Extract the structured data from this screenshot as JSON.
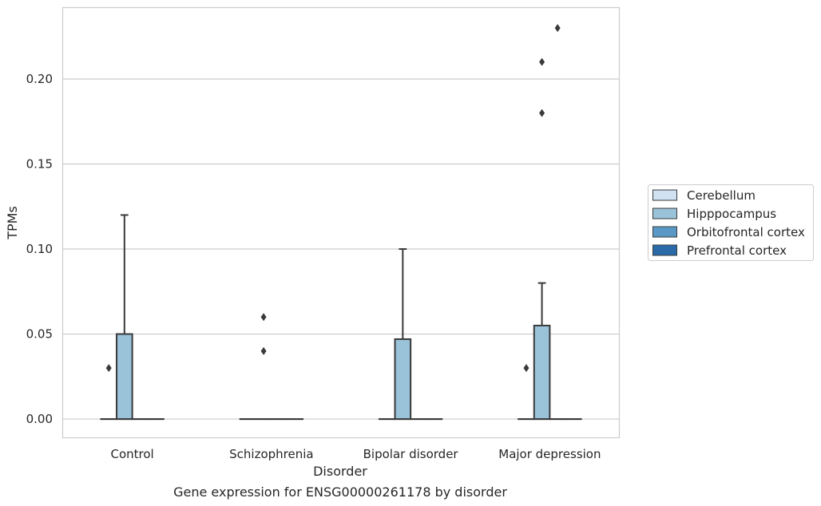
{
  "chart_data": {
    "type": "box",
    "title": "",
    "caption": "Gene expression for ENSG00000261178 by disorder",
    "xlabel": "Disorder",
    "ylabel": "TPMs",
    "ylim": [
      -0.011,
      0.242
    ],
    "yticks": [
      0.0,
      0.05,
      0.1,
      0.15,
      0.2
    ],
    "ytick_labels": [
      "0.00",
      "0.05",
      "0.10",
      "0.15",
      "0.20"
    ],
    "grid": "horizontal",
    "legend_position": "right",
    "categories": [
      "Control",
      "Schizophrenia",
      "Bipolar disorder",
      "Major depression"
    ],
    "series": [
      {
        "name": "Cerebellum",
        "color": "#d0e1f2",
        "boxes": [
          {
            "q1": 0,
            "median": 0,
            "q3": 0,
            "whisker_low": 0,
            "whisker_high": 0,
            "outliers": [
              0.03
            ]
          },
          {
            "q1": 0,
            "median": 0,
            "q3": 0,
            "whisker_low": 0,
            "whisker_high": 0,
            "outliers": []
          },
          {
            "q1": 0,
            "median": 0,
            "q3": 0,
            "whisker_low": 0,
            "whisker_high": 0,
            "outliers": []
          },
          {
            "q1": 0,
            "median": 0,
            "q3": 0,
            "whisker_low": 0,
            "whisker_high": 0,
            "outliers": [
              0.03
            ]
          }
        ]
      },
      {
        "name": "Hipppocampus",
        "color": "#9ac3da",
        "boxes": [
          {
            "q1": 0,
            "median": 0,
            "q3": 0.05,
            "whisker_low": 0,
            "whisker_high": 0.12,
            "outliers": []
          },
          {
            "q1": 0,
            "median": 0,
            "q3": 0,
            "whisker_low": 0,
            "whisker_high": 0,
            "outliers": [
              0.04,
              0.06
            ]
          },
          {
            "q1": 0,
            "median": 0,
            "q3": 0.047,
            "whisker_low": 0,
            "whisker_high": 0.1,
            "outliers": []
          },
          {
            "q1": 0,
            "median": 0,
            "q3": 0.055,
            "whisker_low": 0,
            "whisker_high": 0.08,
            "outliers": [
              0.18,
              0.21
            ]
          }
        ]
      },
      {
        "name": "Orbitofrontal cortex",
        "color": "#5a99c5",
        "boxes": [
          {
            "q1": 0,
            "median": 0,
            "q3": 0,
            "whisker_low": 0,
            "whisker_high": 0,
            "outliers": []
          },
          {
            "q1": 0,
            "median": 0,
            "q3": 0,
            "whisker_low": 0,
            "whisker_high": 0,
            "outliers": []
          },
          {
            "q1": 0,
            "median": 0,
            "q3": 0,
            "whisker_low": 0,
            "whisker_high": 0,
            "outliers": []
          },
          {
            "q1": 0,
            "median": 0,
            "q3": 0,
            "whisker_low": 0,
            "whisker_high": 0,
            "outliers": [
              0.23
            ]
          }
        ]
      },
      {
        "name": "Prefrontal cortex",
        "color": "#2a6aa8",
        "boxes": [
          {
            "q1": 0,
            "median": 0,
            "q3": 0,
            "whisker_low": 0,
            "whisker_high": 0,
            "outliers": []
          },
          {
            "q1": 0,
            "median": 0,
            "q3": 0,
            "whisker_low": 0,
            "whisker_high": 0,
            "outliers": []
          },
          {
            "q1": 0,
            "median": 0,
            "q3": 0,
            "whisker_low": 0,
            "whisker_high": 0,
            "outliers": []
          },
          {
            "q1": 0,
            "median": 0,
            "q3": 0,
            "whisker_low": 0,
            "whisker_high": 0,
            "outliers": []
          }
        ]
      }
    ],
    "colors": {
      "edge": "#3a3a3a",
      "grid": "#cccccc",
      "frame": "#cccccc",
      "legend_frame": "#cccccc"
    }
  }
}
